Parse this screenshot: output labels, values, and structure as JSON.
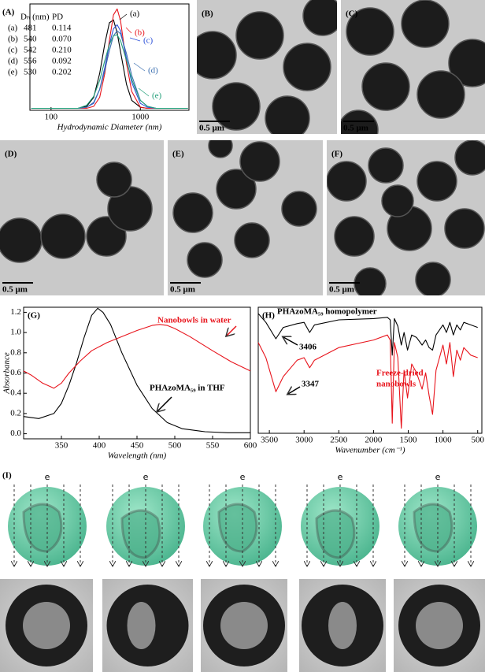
{
  "chart_data": [
    {
      "type": "line",
      "label": "(A)",
      "x_label": "Hydrodynamic Diameter (nm)",
      "log_x": true,
      "xlim": [
        58,
        3500
      ],
      "xticks": [
        100,
        1000
      ],
      "ylim": [
        -0.02,
        1.05
      ],
      "table": {
        "header": [
          "Dₕ (nm)",
          "PD"
        ],
        "rows": [
          [
            "481",
            "0.114"
          ],
          [
            "540",
            "0.070"
          ],
          [
            "542",
            "0.210"
          ],
          [
            "556",
            "0.092"
          ],
          [
            "530",
            "0.202"
          ]
        ]
      },
      "series": [
        {
          "name": "(a)",
          "color": "#000000",
          "x": [
            60,
            200,
            250,
            300,
            350,
            400,
            450,
            500,
            550,
            600,
            700,
            800,
            1000,
            1200,
            1500,
            3400
          ],
          "values": [
            0,
            0,
            0.02,
            0.11,
            0.35,
            0.65,
            0.86,
            0.89,
            0.76,
            0.57,
            0.24,
            0.08,
            0.01,
            0,
            0,
            0
          ]
        },
        {
          "name": "(b)",
          "color": "#e8141c",
          "x": [
            60,
            200,
            250,
            300,
            350,
            400,
            450,
            500,
            550,
            600,
            700,
            800,
            1000,
            1200,
            1500,
            3400
          ],
          "values": [
            0,
            0,
            0,
            0.02,
            0.11,
            0.35,
            0.68,
            0.94,
            1.0,
            0.88,
            0.45,
            0.17,
            0.01,
            0,
            0,
            0
          ]
        },
        {
          "name": "(c)",
          "color": "#2a4fd8",
          "x": [
            60,
            200,
            250,
            300,
            350,
            400,
            450,
            500,
            550,
            600,
            700,
            800,
            1000,
            1200,
            1500,
            3400
          ],
          "values": [
            0,
            0,
            0.01,
            0.05,
            0.19,
            0.41,
            0.64,
            0.8,
            0.84,
            0.78,
            0.5,
            0.26,
            0.05,
            0.01,
            0,
            0
          ]
        },
        {
          "name": "(d)",
          "color": "#3b6fb0",
          "x": [
            60,
            200,
            250,
            300,
            350,
            400,
            450,
            500,
            550,
            600,
            700,
            800,
            1000,
            1200,
            1500,
            3400
          ],
          "values": [
            0,
            0,
            0.01,
            0.06,
            0.19,
            0.38,
            0.58,
            0.73,
            0.78,
            0.75,
            0.55,
            0.33,
            0.08,
            0.02,
            0,
            0
          ]
        },
        {
          "name": "(e)",
          "color": "#1f9e78",
          "x": [
            60,
            200,
            250,
            300,
            350,
            400,
            450,
            500,
            550,
            600,
            700,
            800,
            1000,
            1200,
            1500,
            3400
          ],
          "values": [
            0,
            0,
            0.03,
            0.12,
            0.28,
            0.48,
            0.64,
            0.73,
            0.74,
            0.68,
            0.48,
            0.29,
            0.08,
            0.02,
            0,
            0
          ]
        }
      ]
    },
    {
      "type": "line",
      "label": "(G)",
      "x_label": "Wavelength (nm)",
      "y_label": "Absorbance",
      "xlim": [
        300,
        600
      ],
      "xticks": [
        350,
        400,
        450,
        500,
        550,
        600
      ],
      "ylim": [
        -0.05,
        1.25
      ],
      "yticks": [
        {
          "value": 0,
          "label": "0.0"
        },
        0.2,
        0.4,
        0.6,
        0.8,
        {
          "value": 1,
          "label": "1.0"
        },
        1.2
      ],
      "annotations": [
        "Nanobowls in water",
        "PHAzoMA₅₉ in THF"
      ],
      "series": [
        {
          "color": "#000000",
          "x": [
            300,
            320,
            340,
            350,
            360,
            370,
            380,
            390,
            398,
            405,
            415,
            430,
            450,
            470,
            490,
            510,
            540,
            570,
            600
          ],
          "values": [
            0.17,
            0.15,
            0.2,
            0.3,
            0.48,
            0.7,
            0.95,
            1.17,
            1.24,
            1.2,
            1.08,
            0.8,
            0.48,
            0.25,
            0.11,
            0.05,
            0.02,
            0.01,
            0.01
          ]
        },
        {
          "color": "#e8141c",
          "x": [
            300,
            310,
            325,
            340,
            350,
            360,
            375,
            390,
            410,
            430,
            450,
            470,
            480,
            490,
            500,
            520,
            550,
            575,
            600
          ],
          "values": [
            0.62,
            0.58,
            0.5,
            0.45,
            0.5,
            0.6,
            0.72,
            0.82,
            0.9,
            0.96,
            1.02,
            1.07,
            1.08,
            1.07,
            1.04,
            0.96,
            0.82,
            0.71,
            0.62
          ]
        }
      ]
    },
    {
      "type": "line",
      "label": "(H)",
      "x_label": "Wavenumber (cm⁻¹)",
      "xlim": [
        3660,
        440
      ],
      "xticks": [
        3500,
        3000,
        2500,
        2000,
        1500,
        1000,
        500
      ],
      "ylim": [
        0,
        100
      ],
      "annotations": [
        "PHAzoMA₅₉ homopolymer",
        "3406",
        "Freeze-dried",
        "nanobowls",
        "3347"
      ],
      "series": [
        {
          "color": "#000000",
          "x": [
            3660,
            3550,
            3406,
            3300,
            3100,
            3000,
            2920,
            2850,
            2500,
            2000,
            1800,
            1760,
            1730,
            1700,
            1650,
            1600,
            1560,
            1510,
            1450,
            1380,
            1300,
            1250,
            1200,
            1150,
            1100,
            1000,
            950,
            900,
            850,
            800,
            750,
            700,
            600,
            500
          ],
          "values": [
            95,
            88,
            75,
            84,
            87,
            88,
            80,
            86,
            90,
            91,
            92,
            90,
            62,
            91,
            85,
            70,
            80,
            66,
            78,
            76,
            70,
            74,
            68,
            66,
            78,
            86,
            80,
            88,
            78,
            86,
            82,
            88,
            86,
            84
          ]
        },
        {
          "color": "#e8141c",
          "x": [
            3660,
            3550,
            3406,
            3300,
            3100,
            3000,
            2920,
            2850,
            2500,
            2000,
            1800,
            1760,
            1730,
            1700,
            1650,
            1600,
            1560,
            1510,
            1450,
            1380,
            1300,
            1250,
            1200,
            1150,
            1100,
            1000,
            950,
            900,
            850,
            800,
            750,
            700,
            600,
            500
          ],
          "values": [
            72,
            60,
            33,
            45,
            58,
            60,
            52,
            58,
            68,
            74,
            78,
            74,
            8,
            72,
            60,
            4,
            50,
            28,
            55,
            48,
            35,
            48,
            30,
            15,
            50,
            70,
            55,
            72,
            45,
            66,
            58,
            68,
            62,
            60
          ]
        }
      ]
    }
  ],
  "panels": [
    {
      "label": "(B)",
      "scale_bar": "0.5 μm"
    },
    {
      "label": "(C)",
      "scale_bar": "0.5 μm"
    },
    {
      "label": "(D)",
      "scale_bar": "0.5 μm"
    },
    {
      "label": "(E)",
      "scale_bar": "0.5 μm"
    },
    {
      "label": "(F)",
      "scale_bar": "0.5 μm"
    }
  ],
  "schematic": {
    "label": "(I)",
    "beam_labels": [
      "e",
      "e",
      "e",
      "e",
      "e"
    ]
  }
}
